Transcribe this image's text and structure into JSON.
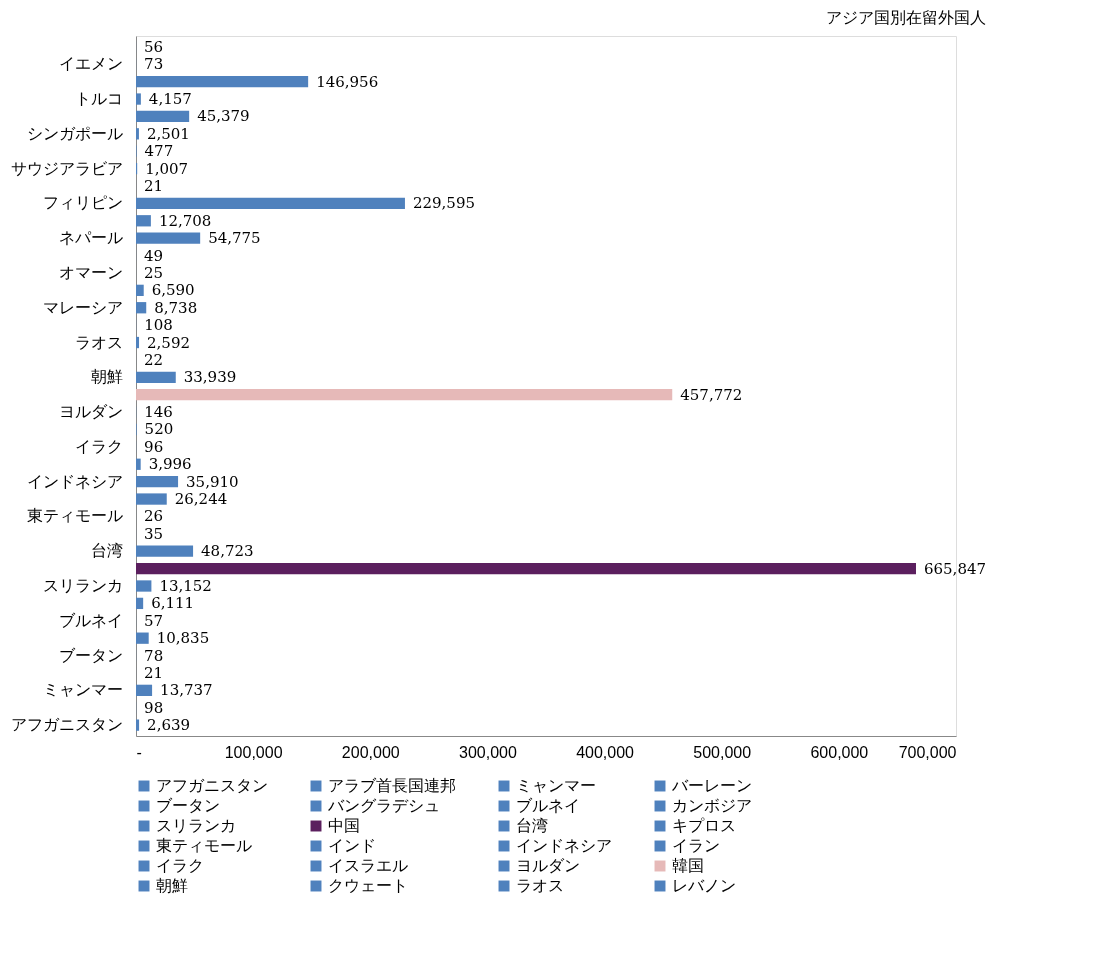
{
  "chart_data": {
    "type": "bar",
    "orientation": "horizontal",
    "title": "アジア国別在留外国人",
    "categories": [
      null,
      "イエメン",
      null,
      "トルコ",
      null,
      "シンガポール",
      null,
      "サウジアラビア",
      null,
      "フィリピン",
      null,
      "ネパール",
      null,
      "オマーン",
      null,
      "マレーシア",
      null,
      "ラオス",
      null,
      "朝鮮",
      null,
      "ヨルダン",
      null,
      "イラク",
      null,
      "インドネシア",
      null,
      "東ティモール",
      null,
      "台湾",
      null,
      "スリランカ",
      null,
      "ブルネイ",
      null,
      "ブータン",
      null,
      "ミャンマー",
      null,
      "アフガニスタン"
    ],
    "xlim": [
      0,
      700000
    ],
    "xticks": [
      {
        "value": 0,
        "label": "-"
      },
      {
        "value": 100000,
        "label": "100,000"
      },
      {
        "value": 200000,
        "label": "200,000"
      },
      {
        "value": 300000,
        "label": "300,000"
      },
      {
        "value": 400000,
        "label": "400,000"
      },
      {
        "value": 500000,
        "label": "500,000"
      },
      {
        "value": 600000,
        "label": "600,000"
      },
      {
        "value": 700000,
        "label": "700,000"
      }
    ],
    "grid": false,
    "legend": "bottom",
    "series": [
      {
        "name": "アフガニスタン",
        "color": "#4f81bd",
        "values": [
          null,
          null,
          null,
          null,
          null,
          null,
          null,
          null,
          null,
          null,
          null,
          null,
          null,
          null,
          null,
          null,
          null,
          null,
          null,
          null,
          null,
          null,
          null,
          null,
          null,
          null,
          null,
          null,
          null,
          null,
          null,
          null,
          null,
          null,
          null,
          null,
          null,
          null,
          null,
          2639
        ],
        "value_labels": [
          null,
          null,
          null,
          null,
          null,
          null,
          null,
          null,
          null,
          null,
          null,
          null,
          null,
          null,
          null,
          null,
          null,
          null,
          null,
          null,
          null,
          null,
          null,
          null,
          null,
          null,
          null,
          null,
          null,
          null,
          null,
          null,
          null,
          null,
          null,
          null,
          null,
          null,
          null,
          "2,639"
        ]
      },
      {
        "name": "アラブ首長国連邦",
        "color": "#4f81bd",
        "values": [
          null,
          null,
          null,
          null,
          null,
          null,
          null,
          null,
          null,
          null,
          null,
          null,
          null,
          null,
          null,
          null,
          null,
          null,
          null,
          null,
          null,
          null,
          null,
          null,
          null,
          null,
          null,
          null,
          null,
          null,
          null,
          null,
          null,
          null,
          null,
          null,
          null,
          null,
          98,
          null
        ],
        "value_labels": [
          null,
          null,
          null,
          null,
          null,
          null,
          null,
          null,
          null,
          null,
          null,
          null,
          null,
          null,
          null,
          null,
          null,
          null,
          null,
          null,
          null,
          null,
          null,
          null,
          null,
          null,
          null,
          null,
          null,
          null,
          null,
          null,
          null,
          null,
          null,
          null,
          null,
          null,
          "98",
          null
        ]
      },
      {
        "name": "ミャンマー",
        "color": "#4f81bd",
        "values": [
          null,
          null,
          null,
          null,
          null,
          null,
          null,
          null,
          null,
          null,
          null,
          null,
          null,
          null,
          null,
          null,
          null,
          null,
          null,
          null,
          null,
          null,
          null,
          null,
          null,
          null,
          null,
          null,
          null,
          null,
          null,
          null,
          null,
          null,
          null,
          null,
          null,
          13737,
          null,
          null
        ],
        "value_labels": [
          null,
          null,
          null,
          null,
          null,
          null,
          null,
          null,
          null,
          null,
          null,
          null,
          null,
          null,
          null,
          null,
          null,
          null,
          null,
          null,
          null,
          null,
          null,
          null,
          null,
          null,
          null,
          null,
          null,
          null,
          null,
          null,
          null,
          null,
          null,
          null,
          null,
          "13,737",
          null,
          null
        ]
      },
      {
        "name": "バーレーン",
        "color": "#4f81bd",
        "values": [
          null,
          null,
          null,
          null,
          null,
          null,
          null,
          null,
          null,
          null,
          null,
          null,
          null,
          null,
          null,
          null,
          null,
          null,
          null,
          null,
          null,
          null,
          null,
          null,
          null,
          null,
          null,
          null,
          null,
          null,
          null,
          null,
          null,
          null,
          null,
          null,
          21,
          null,
          null,
          null
        ],
        "value_labels": [
          null,
          null,
          null,
          null,
          null,
          null,
          null,
          null,
          null,
          null,
          null,
          null,
          null,
          null,
          null,
          null,
          null,
          null,
          null,
          null,
          null,
          null,
          null,
          null,
          null,
          null,
          null,
          null,
          null,
          null,
          null,
          null,
          null,
          null,
          null,
          null,
          "21",
          null,
          null,
          null
        ]
      },
      {
        "name": "ブータン",
        "color": "#4f81bd",
        "values": [
          null,
          null,
          null,
          null,
          null,
          null,
          null,
          null,
          null,
          null,
          null,
          null,
          null,
          null,
          null,
          null,
          null,
          null,
          null,
          null,
          null,
          null,
          null,
          null,
          null,
          null,
          null,
          null,
          null,
          null,
          null,
          null,
          null,
          null,
          null,
          78,
          null,
          null,
          null,
          null
        ],
        "value_labels": [
          null,
          null,
          null,
          null,
          null,
          null,
          null,
          null,
          null,
          null,
          null,
          null,
          null,
          null,
          null,
          null,
          null,
          null,
          null,
          null,
          null,
          null,
          null,
          null,
          null,
          null,
          null,
          null,
          null,
          null,
          null,
          null,
          null,
          null,
          null,
          "78",
          null,
          null,
          null,
          null
        ]
      },
      {
        "name": "バングラデシュ",
        "color": "#4f81bd",
        "values": [
          null,
          null,
          null,
          null,
          null,
          null,
          null,
          null,
          null,
          null,
          null,
          null,
          null,
          null,
          null,
          null,
          null,
          null,
          null,
          null,
          null,
          null,
          null,
          null,
          null,
          null,
          null,
          null,
          null,
          null,
          null,
          null,
          null,
          null,
          10835,
          null,
          null,
          null,
          null,
          null
        ],
        "value_labels": [
          null,
          null,
          null,
          null,
          null,
          null,
          null,
          null,
          null,
          null,
          null,
          null,
          null,
          null,
          null,
          null,
          null,
          null,
          null,
          null,
          null,
          null,
          null,
          null,
          null,
          null,
          null,
          null,
          null,
          null,
          null,
          null,
          null,
          null,
          "10,835",
          null,
          null,
          null,
          null,
          null
        ]
      },
      {
        "name": "ブルネイ",
        "color": "#4f81bd",
        "values": [
          null,
          null,
          null,
          null,
          null,
          null,
          null,
          null,
          null,
          null,
          null,
          null,
          null,
          null,
          null,
          null,
          null,
          null,
          null,
          null,
          null,
          null,
          null,
          null,
          null,
          null,
          null,
          null,
          null,
          null,
          null,
          null,
          null,
          57,
          null,
          null,
          null,
          null,
          null,
          null
        ],
        "value_labels": [
          null,
          null,
          null,
          null,
          null,
          null,
          null,
          null,
          null,
          null,
          null,
          null,
          null,
          null,
          null,
          null,
          null,
          null,
          null,
          null,
          null,
          null,
          null,
          null,
          null,
          null,
          null,
          null,
          null,
          null,
          null,
          null,
          null,
          "57",
          null,
          null,
          null,
          null,
          null,
          null
        ]
      },
      {
        "name": "カンボジア",
        "color": "#4f81bd",
        "values": [
          null,
          null,
          null,
          null,
          null,
          null,
          null,
          null,
          null,
          null,
          null,
          null,
          null,
          null,
          null,
          null,
          null,
          null,
          null,
          null,
          null,
          null,
          null,
          null,
          null,
          null,
          null,
          null,
          null,
          null,
          null,
          null,
          6111,
          null,
          null,
          null,
          null,
          null,
          null,
          null
        ],
        "value_labels": [
          null,
          null,
          null,
          null,
          null,
          null,
          null,
          null,
          null,
          null,
          null,
          null,
          null,
          null,
          null,
          null,
          null,
          null,
          null,
          null,
          null,
          null,
          null,
          null,
          null,
          null,
          null,
          null,
          null,
          null,
          null,
          null,
          "6,111",
          null,
          null,
          null,
          null,
          null,
          null,
          null
        ]
      },
      {
        "name": "スリランカ",
        "color": "#4f81bd",
        "values": [
          null,
          null,
          null,
          null,
          null,
          null,
          null,
          null,
          null,
          null,
          null,
          null,
          null,
          null,
          null,
          null,
          null,
          null,
          null,
          null,
          null,
          null,
          null,
          null,
          null,
          null,
          null,
          null,
          null,
          null,
          null,
          13152,
          null,
          null,
          null,
          null,
          null,
          null,
          null,
          null
        ],
        "value_labels": [
          null,
          null,
          null,
          null,
          null,
          null,
          null,
          null,
          null,
          null,
          null,
          null,
          null,
          null,
          null,
          null,
          null,
          null,
          null,
          null,
          null,
          null,
          null,
          null,
          null,
          null,
          null,
          null,
          null,
          null,
          null,
          "13,152",
          null,
          null,
          null,
          null,
          null,
          null,
          null,
          null
        ]
      },
      {
        "name": "中国",
        "color": "#5b1f5e",
        "values": [
          null,
          null,
          null,
          null,
          null,
          null,
          null,
          null,
          null,
          null,
          null,
          null,
          null,
          null,
          null,
          null,
          null,
          null,
          null,
          null,
          null,
          null,
          null,
          null,
          null,
          null,
          null,
          null,
          null,
          null,
          665847,
          null,
          null,
          null,
          null,
          null,
          null,
          null,
          null,
          null
        ],
        "value_labels": [
          null,
          null,
          null,
          null,
          null,
          null,
          null,
          null,
          null,
          null,
          null,
          null,
          null,
          null,
          null,
          null,
          null,
          null,
          null,
          null,
          null,
          null,
          null,
          null,
          null,
          null,
          null,
          null,
          null,
          null,
          "665,847",
          null,
          null,
          null,
          null,
          null,
          null,
          null,
          null,
          null
        ]
      },
      {
        "name": "台湾",
        "color": "#4f81bd",
        "values": [
          null,
          null,
          null,
          null,
          null,
          null,
          null,
          null,
          null,
          null,
          null,
          null,
          null,
          null,
          null,
          null,
          null,
          null,
          null,
          null,
          null,
          null,
          null,
          null,
          null,
          null,
          null,
          null,
          null,
          48723,
          null,
          null,
          null,
          null,
          null,
          null,
          null,
          null,
          null,
          null
        ],
        "value_labels": [
          null,
          null,
          null,
          null,
          null,
          null,
          null,
          null,
          null,
          null,
          null,
          null,
          null,
          null,
          null,
          null,
          null,
          null,
          null,
          null,
          null,
          null,
          null,
          null,
          null,
          null,
          null,
          null,
          null,
          "48,723",
          null,
          null,
          null,
          null,
          null,
          null,
          null,
          null,
          null,
          null
        ]
      },
      {
        "name": "キプロス",
        "color": "#4f81bd",
        "values": [
          null,
          null,
          null,
          null,
          null,
          null,
          null,
          null,
          null,
          null,
          null,
          null,
          null,
          null,
          null,
          null,
          null,
          null,
          null,
          null,
          null,
          null,
          null,
          null,
          null,
          null,
          null,
          null,
          35,
          null,
          null,
          null,
          null,
          null,
          null,
          null,
          null,
          null,
          null,
          null
        ],
        "value_labels": [
          null,
          null,
          null,
          null,
          null,
          null,
          null,
          null,
          null,
          null,
          null,
          null,
          null,
          null,
          null,
          null,
          null,
          null,
          null,
          null,
          null,
          null,
          null,
          null,
          null,
          null,
          null,
          null,
          "35",
          null,
          null,
          null,
          null,
          null,
          null,
          null,
          null,
          null,
          null,
          null
        ]
      },
      {
        "name": "東ティモール",
        "color": "#4f81bd",
        "values": [
          null,
          null,
          null,
          null,
          null,
          null,
          null,
          null,
          null,
          null,
          null,
          null,
          null,
          null,
          null,
          null,
          null,
          null,
          null,
          null,
          null,
          null,
          null,
          null,
          null,
          null,
          null,
          26,
          null,
          null,
          null,
          null,
          null,
          null,
          null,
          null,
          null,
          null,
          null,
          null
        ],
        "value_labels": [
          null,
          null,
          null,
          null,
          null,
          null,
          null,
          null,
          null,
          null,
          null,
          null,
          null,
          null,
          null,
          null,
          null,
          null,
          null,
          null,
          null,
          null,
          null,
          null,
          null,
          null,
          null,
          "26",
          null,
          null,
          null,
          null,
          null,
          null,
          null,
          null,
          null,
          null,
          null,
          null
        ]
      },
      {
        "name": "インド",
        "color": "#4f81bd",
        "values": [
          null,
          null,
          null,
          null,
          null,
          null,
          null,
          null,
          null,
          null,
          null,
          null,
          null,
          null,
          null,
          null,
          null,
          null,
          null,
          null,
          null,
          null,
          null,
          null,
          null,
          null,
          26244,
          null,
          null,
          null,
          null,
          null,
          null,
          null,
          null,
          null,
          null,
          null,
          null,
          null
        ],
        "value_labels": [
          null,
          null,
          null,
          null,
          null,
          null,
          null,
          null,
          null,
          null,
          null,
          null,
          null,
          null,
          null,
          null,
          null,
          null,
          null,
          null,
          null,
          null,
          null,
          null,
          null,
          null,
          "26,244",
          null,
          null,
          null,
          null,
          null,
          null,
          null,
          null,
          null,
          null,
          null,
          null,
          null
        ]
      },
      {
        "name": "インドネシア",
        "color": "#4f81bd",
        "values": [
          null,
          null,
          null,
          null,
          null,
          null,
          null,
          null,
          null,
          null,
          null,
          null,
          null,
          null,
          null,
          null,
          null,
          null,
          null,
          null,
          null,
          null,
          null,
          null,
          null,
          35910,
          null,
          null,
          null,
          null,
          null,
          null,
          null,
          null,
          null,
          null,
          null,
          null,
          null,
          null
        ],
        "value_labels": [
          null,
          null,
          null,
          null,
          null,
          null,
          null,
          null,
          null,
          null,
          null,
          null,
          null,
          null,
          null,
          null,
          null,
          null,
          null,
          null,
          null,
          null,
          null,
          null,
          null,
          "35,910",
          null,
          null,
          null,
          null,
          null,
          null,
          null,
          null,
          null,
          null,
          null,
          null,
          null,
          null
        ]
      },
      {
        "name": "イラン",
        "color": "#4f81bd",
        "values": [
          null,
          null,
          null,
          null,
          null,
          null,
          null,
          null,
          null,
          null,
          null,
          null,
          null,
          null,
          null,
          null,
          null,
          null,
          null,
          null,
          null,
          null,
          null,
          null,
          3996,
          null,
          null,
          null,
          null,
          null,
          null,
          null,
          null,
          null,
          null,
          null,
          null,
          null,
          null,
          null
        ],
        "value_labels": [
          null,
          null,
          null,
          null,
          null,
          null,
          null,
          null,
          null,
          null,
          null,
          null,
          null,
          null,
          null,
          null,
          null,
          null,
          null,
          null,
          null,
          null,
          null,
          null,
          "3,996",
          null,
          null,
          null,
          null,
          null,
          null,
          null,
          null,
          null,
          null,
          null,
          null,
          null,
          null,
          null
        ]
      },
      {
        "name": "イラク",
        "color": "#4f81bd",
        "values": [
          null,
          null,
          null,
          null,
          null,
          null,
          null,
          null,
          null,
          null,
          null,
          null,
          null,
          null,
          null,
          null,
          null,
          null,
          null,
          null,
          null,
          null,
          null,
          96,
          null,
          null,
          null,
          null,
          null,
          null,
          null,
          null,
          null,
          null,
          null,
          null,
          null,
          null,
          null,
          null
        ],
        "value_labels": [
          null,
          null,
          null,
          null,
          null,
          null,
          null,
          null,
          null,
          null,
          null,
          null,
          null,
          null,
          null,
          null,
          null,
          null,
          null,
          null,
          null,
          null,
          null,
          "96",
          null,
          null,
          null,
          null,
          null,
          null,
          null,
          null,
          null,
          null,
          null,
          null,
          null,
          null,
          null,
          null
        ]
      },
      {
        "name": "イスラエル",
        "color": "#4f81bd",
        "values": [
          null,
          null,
          null,
          null,
          null,
          null,
          null,
          null,
          null,
          null,
          null,
          null,
          null,
          null,
          null,
          null,
          null,
          null,
          null,
          null,
          null,
          null,
          520,
          null,
          null,
          null,
          null,
          null,
          null,
          null,
          null,
          null,
          null,
          null,
          null,
          null,
          null,
          null,
          null,
          null
        ],
        "value_labels": [
          null,
          null,
          null,
          null,
          null,
          null,
          null,
          null,
          null,
          null,
          null,
          null,
          null,
          null,
          null,
          null,
          null,
          null,
          null,
          null,
          null,
          null,
          "520",
          null,
          null,
          null,
          null,
          null,
          null,
          null,
          null,
          null,
          null,
          null,
          null,
          null,
          null,
          null,
          null,
          null
        ]
      },
      {
        "name": "ヨルダン",
        "color": "#4f81bd",
        "values": [
          null,
          null,
          null,
          null,
          null,
          null,
          null,
          null,
          null,
          null,
          null,
          null,
          null,
          null,
          null,
          null,
          null,
          null,
          null,
          null,
          null,
          146,
          null,
          null,
          null,
          null,
          null,
          null,
          null,
          null,
          null,
          null,
          null,
          null,
          null,
          null,
          null,
          null,
          null,
          null
        ],
        "value_labels": [
          null,
          null,
          null,
          null,
          null,
          null,
          null,
          null,
          null,
          null,
          null,
          null,
          null,
          null,
          null,
          null,
          null,
          null,
          null,
          null,
          null,
          "146",
          null,
          null,
          null,
          null,
          null,
          null,
          null,
          null,
          null,
          null,
          null,
          null,
          null,
          null,
          null,
          null,
          null,
          null
        ]
      },
      {
        "name": "韓国",
        "color": "#e6b9b8",
        "values": [
          null,
          null,
          null,
          null,
          null,
          null,
          null,
          null,
          null,
          null,
          null,
          null,
          null,
          null,
          null,
          null,
          null,
          null,
          null,
          null,
          457772,
          null,
          null,
          null,
          null,
          null,
          null,
          null,
          null,
          null,
          null,
          null,
          null,
          null,
          null,
          null,
          null,
          null,
          null,
          null
        ],
        "value_labels": [
          null,
          null,
          null,
          null,
          null,
          null,
          null,
          null,
          null,
          null,
          null,
          null,
          null,
          null,
          null,
          null,
          null,
          null,
          null,
          null,
          "457,772",
          null,
          null,
          null,
          null,
          null,
          null,
          null,
          null,
          null,
          null,
          null,
          null,
          null,
          null,
          null,
          null,
          null,
          null,
          null
        ]
      },
      {
        "name": "朝鮮",
        "color": "#4f81bd",
        "values": [
          null,
          null,
          null,
          null,
          null,
          null,
          null,
          null,
          null,
          null,
          null,
          null,
          null,
          null,
          null,
          null,
          null,
          null,
          null,
          33939,
          null,
          null,
          null,
          null,
          null,
          null,
          null,
          null,
          null,
          null,
          null,
          null,
          null,
          null,
          null,
          null,
          null,
          null,
          null,
          null
        ],
        "value_labels": [
          null,
          null,
          null,
          null,
          null,
          null,
          null,
          null,
          null,
          null,
          null,
          null,
          null,
          null,
          null,
          null,
          null,
          null,
          null,
          "33,939",
          null,
          null,
          null,
          null,
          null,
          null,
          null,
          null,
          null,
          null,
          null,
          null,
          null,
          null,
          null,
          null,
          null,
          null,
          null,
          null
        ]
      },
      {
        "name": "クウェート",
        "color": "#4f81bd",
        "values": [
          null,
          null,
          null,
          null,
          null,
          null,
          null,
          null,
          null,
          null,
          null,
          null,
          null,
          null,
          null,
          null,
          null,
          null,
          22,
          null,
          null,
          null,
          null,
          null,
          null,
          null,
          null,
          null,
          null,
          null,
          null,
          null,
          null,
          null,
          null,
          null,
          null,
          null,
          null,
          null
        ],
        "value_labels": [
          null,
          null,
          null,
          null,
          null,
          null,
          null,
          null,
          null,
          null,
          null,
          null,
          null,
          null,
          null,
          null,
          null,
          null,
          "22",
          null,
          null,
          null,
          null,
          null,
          null,
          null,
          null,
          null,
          null,
          null,
          null,
          null,
          null,
          null,
          null,
          null,
          null,
          null,
          null,
          null
        ]
      },
      {
        "name": "ラオス",
        "color": "#4f81bd",
        "values": [
          null,
          null,
          null,
          null,
          null,
          null,
          null,
          null,
          null,
          null,
          null,
          null,
          null,
          null,
          null,
          null,
          null,
          2592,
          null,
          null,
          null,
          null,
          null,
          null,
          null,
          null,
          null,
          null,
          null,
          null,
          null,
          null,
          null,
          null,
          null,
          null,
          null,
          null,
          null,
          null
        ],
        "value_labels": [
          null,
          null,
          null,
          null,
          null,
          null,
          null,
          null,
          null,
          null,
          null,
          null,
          null,
          null,
          null,
          null,
          null,
          "2,592",
          null,
          null,
          null,
          null,
          null,
          null,
          null,
          null,
          null,
          null,
          null,
          null,
          null,
          null,
          null,
          null,
          null,
          null,
          null,
          null,
          null,
          null
        ]
      },
      {
        "name": "レバノン",
        "color": "#4f81bd",
        "values": [
          null,
          null,
          null,
          null,
          null,
          null,
          null,
          null,
          null,
          null,
          null,
          null,
          null,
          null,
          null,
          null,
          108,
          null,
          null,
          null,
          null,
          null,
          null,
          null,
          null,
          null,
          null,
          null,
          null,
          null,
          null,
          null,
          null,
          null,
          null,
          null,
          null,
          null,
          null,
          null
        ],
        "value_labels": [
          null,
          null,
          null,
          null,
          null,
          null,
          null,
          null,
          null,
          null,
          null,
          null,
          null,
          null,
          null,
          null,
          "108",
          null,
          null,
          null,
          null,
          null,
          null,
          null,
          null,
          null,
          null,
          null,
          null,
          null,
          null,
          null,
          null,
          null,
          null,
          null,
          null,
          null,
          null,
          null
        ]
      },
      {
        "color": "#4f81bd",
        "values": [
          56,
          73,
          146956,
          4157,
          45379,
          2501,
          477,
          1007,
          21,
          229595,
          12708,
          54775,
          49,
          25,
          6590,
          8738,
          null,
          null,
          null,
          null,
          null,
          null,
          null,
          null,
          null,
          null,
          null,
          null,
          null,
          null,
          null,
          null,
          null,
          null,
          null,
          null,
          null,
          null,
          null,
          null
        ],
        "value_labels": [
          "56",
          "73",
          "146,956",
          "4,157",
          "45,379",
          "2,501",
          "477",
          "1,007",
          "21",
          "229,595",
          "12,708",
          "54,775",
          "49",
          "25",
          "6,590",
          "8,738",
          null,
          null,
          null,
          null,
          null,
          null,
          null,
          null,
          null,
          null,
          null,
          null,
          null,
          null,
          null,
          null,
          null,
          null,
          null,
          null,
          null,
          null,
          null,
          null
        ]
      }
    ]
  }
}
